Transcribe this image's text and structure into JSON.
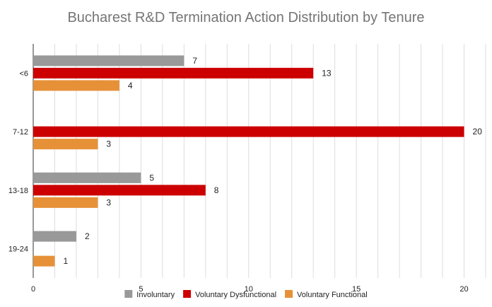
{
  "chart_data": {
    "type": "bar",
    "orientation": "horizontal",
    "title": "Bucharest R&D Termination Action Distribution by Tenure",
    "categories": [
      "<6",
      "7-12",
      "13-18",
      "19-24"
    ],
    "series": [
      {
        "name": "Involuntary",
        "color": "#999999",
        "values": [
          7,
          null,
          5,
          2
        ]
      },
      {
        "name": "Voluntary Dysfunctional",
        "color": "#cc0000",
        "values": [
          13,
          20,
          8,
          null
        ]
      },
      {
        "name": "Voluntary Functional",
        "color": "#e69138",
        "values": [
          4,
          3,
          3,
          1
        ]
      }
    ],
    "xlim": [
      0,
      21
    ],
    "xticks": [
      0,
      5,
      10,
      15,
      20
    ],
    "grid": true,
    "legend_position": "bottom"
  }
}
